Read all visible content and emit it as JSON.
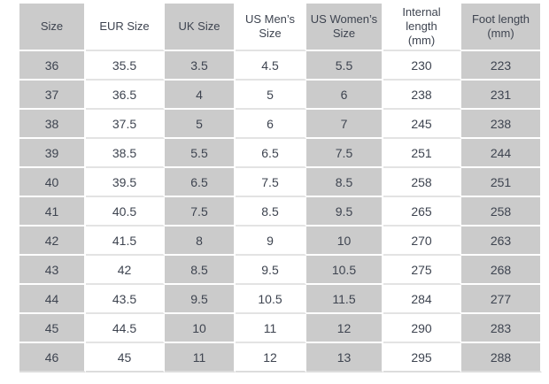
{
  "chart_data": {
    "type": "table",
    "columns": [
      "Size",
      "EUR Size",
      "UK Size",
      "US Men’s Size",
      "US Women’s Size",
      "Internal length (mm)",
      "Foot length (mm)"
    ],
    "rows": [
      [
        "36",
        "35.5",
        "3.5",
        "4.5",
        "5.5",
        "230",
        "223"
      ],
      [
        "37",
        "36.5",
        "4",
        "5",
        "6",
        "238",
        "231"
      ],
      [
        "38",
        "37.5",
        "5",
        "6",
        "7",
        "245",
        "238"
      ],
      [
        "39",
        "38.5",
        "5.5",
        "6.5",
        "7.5",
        "251",
        "244"
      ],
      [
        "40",
        "39.5",
        "6.5",
        "7.5",
        "8.5",
        "258",
        "251"
      ],
      [
        "41",
        "40.5",
        "7.5",
        "8.5",
        "9.5",
        "265",
        "258"
      ],
      [
        "42",
        "41.5",
        "8",
        "9",
        "10",
        "270",
        "263"
      ],
      [
        "43",
        "42",
        "8.5",
        "9.5",
        "10.5",
        "275",
        "268"
      ],
      [
        "44",
        "43.5",
        "9.5",
        "10.5",
        "11.5",
        "284",
        "277"
      ],
      [
        "45",
        "44.5",
        "10",
        "11",
        "12",
        "290",
        "283"
      ],
      [
        "46",
        "45",
        "11",
        "12",
        "13",
        "295",
        "288"
      ]
    ],
    "layout": {
      "grid": "column-striped",
      "legend_position": "none"
    }
  },
  "colors": {
    "stripe_gray": "#cbcbcb",
    "stripe_white": "#ffffff",
    "row_divider": "#e3e3e3",
    "bottom_edge": "#dcdcdc",
    "text": "#3e4450",
    "background": "#ffffff"
  }
}
